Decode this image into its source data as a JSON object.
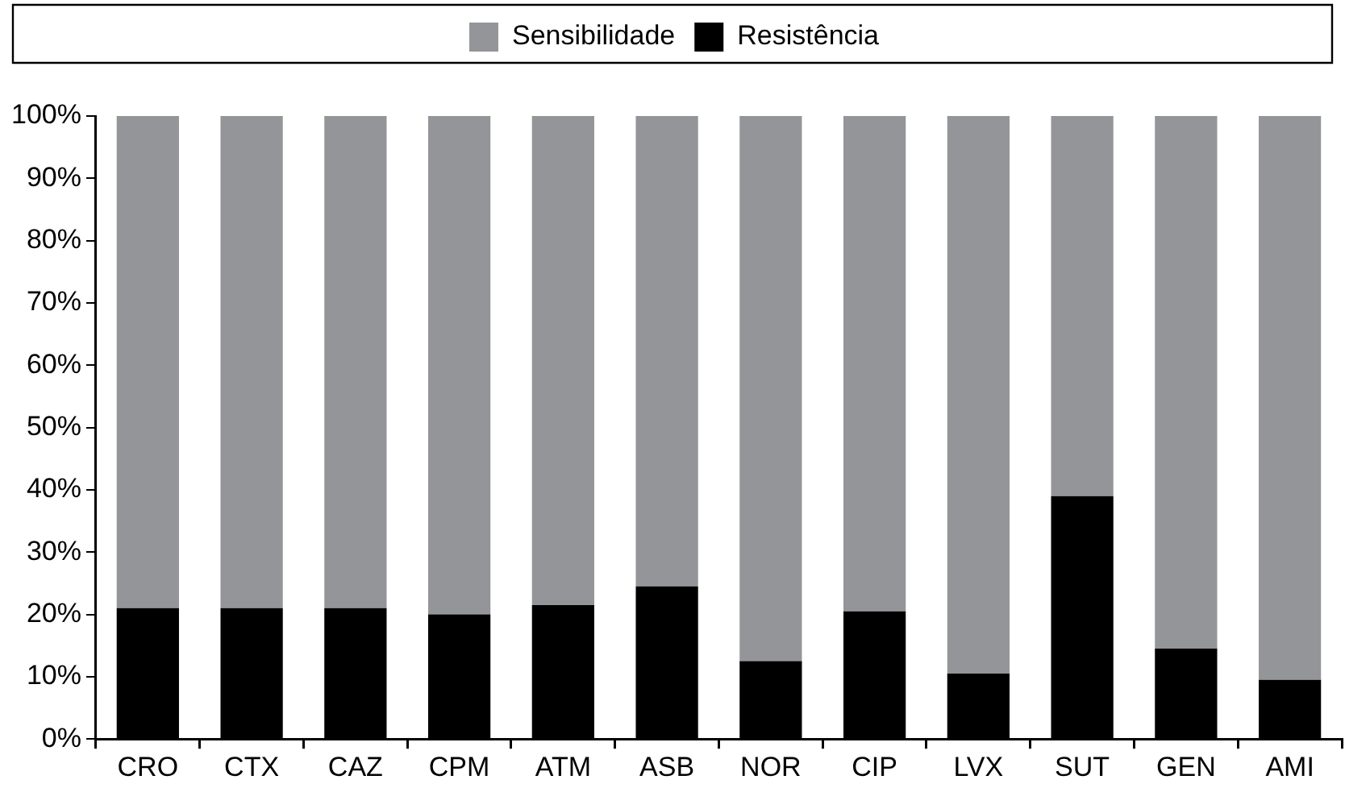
{
  "chart_data": {
    "type": "bar",
    "stacked": true,
    "categories": [
      "CRO",
      "CTX",
      "CAZ",
      "CPM",
      "ATM",
      "ASB",
      "NOR",
      "CIP",
      "LVX",
      "SUT",
      "GEN",
      "AMI"
    ],
    "series": [
      {
        "name": "Resistência",
        "color": "#000000",
        "values": [
          21,
          21,
          21,
          20,
          21.5,
          24.5,
          12.5,
          20.5,
          10.5,
          39,
          14.5,
          9.5
        ]
      },
      {
        "name": "Sensibilidade",
        "color": "#939598",
        "values": [
          79,
          79,
          79,
          80,
          78.5,
          75.5,
          87.5,
          79.5,
          89.5,
          61,
          85.5,
          90.5
        ]
      }
    ],
    "ylim": [
      0,
      100
    ],
    "yticks": [
      {
        "value": 0,
        "label": "0%"
      },
      {
        "value": 10,
        "label": "10%"
      },
      {
        "value": 20,
        "label": "20%"
      },
      {
        "value": 30,
        "label": "30%"
      },
      {
        "value": 40,
        "label": "40%"
      },
      {
        "value": 50,
        "label": "50%"
      },
      {
        "value": 60,
        "label": "60%"
      },
      {
        "value": 70,
        "label": "70%"
      },
      {
        "value": 80,
        "label": "80%"
      },
      {
        "value": 90,
        "label": "90%"
      },
      {
        "value": 100,
        "label": "100%"
      }
    ],
    "grid": false,
    "legend": "top"
  }
}
